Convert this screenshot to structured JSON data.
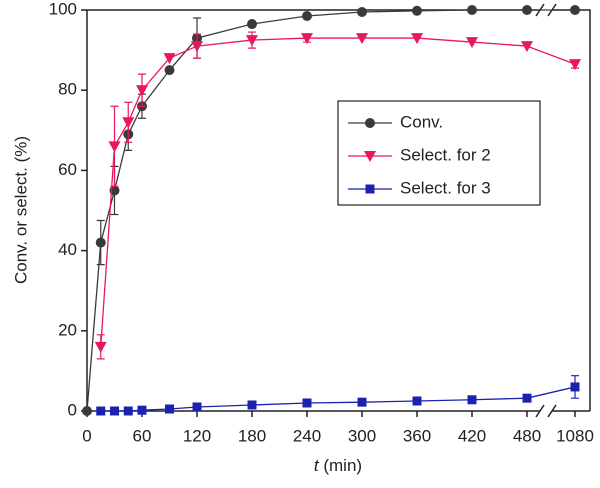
{
  "chart_data": {
    "type": "line",
    "ylabel": "Conv. or select. (%)",
    "xlabel": "t (min)",
    "xlim": [
      0,
      1080
    ],
    "xbreak": [
      480,
      1080
    ],
    "xticks": [
      0,
      60,
      120,
      180,
      240,
      300,
      360,
      420,
      480,
      1080
    ],
    "ylim": [
      0,
      100
    ],
    "yticks": [
      0,
      20,
      40,
      60,
      80,
      100
    ],
    "series": [
      {
        "name": "Conv.",
        "color": "#3a3a3a",
        "marker": "circle",
        "x": [
          0,
          15,
          30,
          45,
          60,
          90,
          120,
          180,
          240,
          300,
          360,
          420,
          480,
          1080
        ],
        "values": [
          0,
          42,
          55,
          69,
          76,
          85,
          93,
          96.5,
          98.5,
          99.5,
          99.8,
          100,
          100,
          100
        ],
        "errors": [
          null,
          5.5,
          6,
          4,
          3,
          null,
          5,
          null,
          null,
          null,
          null,
          null,
          null,
          null
        ]
      },
      {
        "name": "Select. for 2",
        "color": "#e8185a",
        "marker": "triangle-down",
        "x": [
          15,
          30,
          45,
          60,
          90,
          120,
          180,
          240,
          300,
          360,
          420,
          480,
          1080
        ],
        "values": [
          16,
          66,
          72,
          80,
          88,
          91,
          92.5,
          93,
          93,
          93,
          92,
          91,
          86.5
        ],
        "errors": [
          3,
          10,
          5,
          4,
          null,
          3,
          2,
          1,
          null,
          null,
          null,
          null,
          1
        ]
      },
      {
        "name": "Select. for 3",
        "color": "#1c22b0",
        "marker": "square",
        "x": [
          15,
          30,
          45,
          60,
          90,
          120,
          180,
          240,
          300,
          360,
          420,
          480,
          1080
        ],
        "values": [
          0,
          0,
          0,
          0.2,
          0.5,
          1,
          1.5,
          2,
          2.2,
          2.5,
          2.8,
          3.2,
          6
        ],
        "errors": [
          null,
          null,
          null,
          null,
          null,
          null,
          null,
          null,
          null,
          null,
          null,
          null,
          2.8
        ]
      }
    ]
  }
}
